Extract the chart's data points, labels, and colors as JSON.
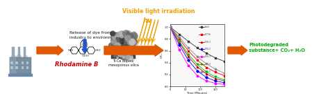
{
  "background_color": "#ffffff",
  "visible_light_text": "Visible light irradiation",
  "hv_text": "hv",
  "release_text": "Release of dye from\nindustry to environment",
  "rhodamine_text": "Rhodamine B",
  "ticedoped_text": "Ti-Ce doped/\nmesoporous silica",
  "photodegraded_text": "Photodegraded\nsubstance+ CO₂+ H₂O",
  "arrow_color": "#e05800",
  "blue_arrow_color": "#2255cc",
  "sun_color": "#f0a000",
  "rhodamine_color": "#cc0000",
  "photodegraded_color": "#00aa00",
  "graph_lines": [
    {
      "color": "#333333",
      "label": "blank",
      "marker": "s"
    },
    {
      "color": "#ff0000",
      "label": "S-CTiSi",
      "marker": "s"
    },
    {
      "color": "#cc0000",
      "label": "CTiSi-1",
      "marker": "^"
    },
    {
      "color": "#0000ff",
      "label": "CTiSi-2",
      "marker": "D"
    },
    {
      "color": "#ff00ff",
      "label": "CTiSi-3",
      "marker": "o"
    },
    {
      "color": "#00bb00",
      "label": "CTiSi-4",
      "marker": "v"
    },
    {
      "color": "#888888",
      "label": "CTiSi-5",
      "marker": "p"
    }
  ],
  "graph_x": [
    0,
    30,
    60,
    90,
    120,
    150,
    180
  ],
  "graph_y_sets": [
    [
      1.0,
      0.88,
      0.76,
      0.65,
      0.56,
      0.48,
      0.42
    ],
    [
      1.0,
      0.8,
      0.6,
      0.44,
      0.32,
      0.24,
      0.18
    ],
    [
      1.0,
      0.74,
      0.5,
      0.33,
      0.21,
      0.13,
      0.09
    ],
    [
      1.0,
      0.7,
      0.44,
      0.26,
      0.15,
      0.09,
      0.06
    ],
    [
      1.0,
      0.62,
      0.35,
      0.18,
      0.09,
      0.05,
      0.03
    ],
    [
      1.0,
      0.76,
      0.54,
      0.37,
      0.24,
      0.16,
      0.11
    ],
    [
      1.0,
      0.83,
      0.65,
      0.5,
      0.38,
      0.29,
      0.22
    ]
  ],
  "graph_xlim": [
    0,
    180
  ],
  "graph_ylim": [
    0.0,
    1.05
  ],
  "graph_yticks": [
    0.0,
    0.2,
    0.4,
    0.6,
    0.8,
    1.0
  ],
  "graph_xticks": [
    0,
    50,
    100,
    150
  ],
  "graph_ylabel": "C/C₀",
  "graph_xlabel": "Time (Minutes)"
}
